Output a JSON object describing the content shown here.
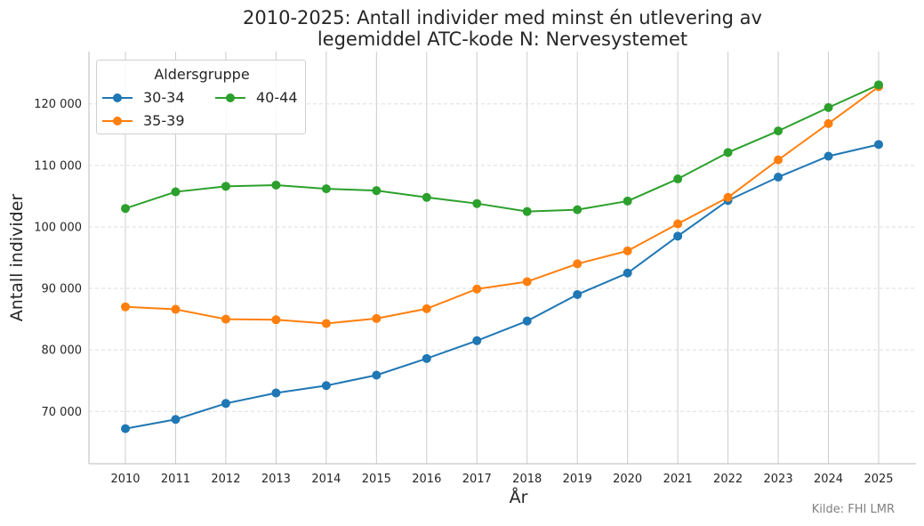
{
  "title_lines": [
    "2010-2025: Antall individer med minst én utlevering av",
    "legemiddel ATC-kode N: Nervesystemet"
  ],
  "source_note": "Kilde: FHI LMR",
  "legend_title": "Aldersgruppe",
  "chart_data": {
    "type": "line",
    "title": "2010-2025: Antall individer med minst én utlevering av legemiddel ATC-kode N: Nervesystemet",
    "xlabel": "År",
    "ylabel": "Antall individer",
    "x": [
      2010,
      2011,
      2012,
      2013,
      2014,
      2015,
      2016,
      2017,
      2018,
      2019,
      2020,
      2021,
      2022,
      2023,
      2024,
      2025
    ],
    "ylim": [
      61500,
      128500
    ],
    "y_ticks": [
      70000,
      80000,
      90000,
      100000,
      110000,
      120000
    ],
    "y_tick_labels": [
      "70 000",
      "80 000",
      "90 000",
      "100 000",
      "110 000",
      "120 000"
    ],
    "grid": {
      "x": true,
      "y": "dashed"
    },
    "legend_position": "top-left",
    "legend_title": "Aldersgruppe",
    "series": [
      {
        "name": "30-34",
        "color": "#1f77b4",
        "values": [
          67200,
          68700,
          71300,
          73000,
          74200,
          75900,
          78600,
          81500,
          84700,
          89000,
          92500,
          98500,
          104300,
          108100,
          111500,
          113400
        ]
      },
      {
        "name": "35-39",
        "color": "#ff7f0e",
        "values": [
          87000,
          86600,
          85000,
          84900,
          84300,
          85100,
          86700,
          89900,
          91100,
          94000,
          96100,
          100500,
          104800,
          110900,
          116800,
          122800
        ]
      },
      {
        "name": "40-44",
        "color": "#2ca02c",
        "values": [
          103000,
          105700,
          106600,
          106800,
          106200,
          105900,
          104800,
          103800,
          102500,
          102800,
          104200,
          107800,
          112100,
          115600,
          119400,
          123100
        ]
      }
    ]
  }
}
